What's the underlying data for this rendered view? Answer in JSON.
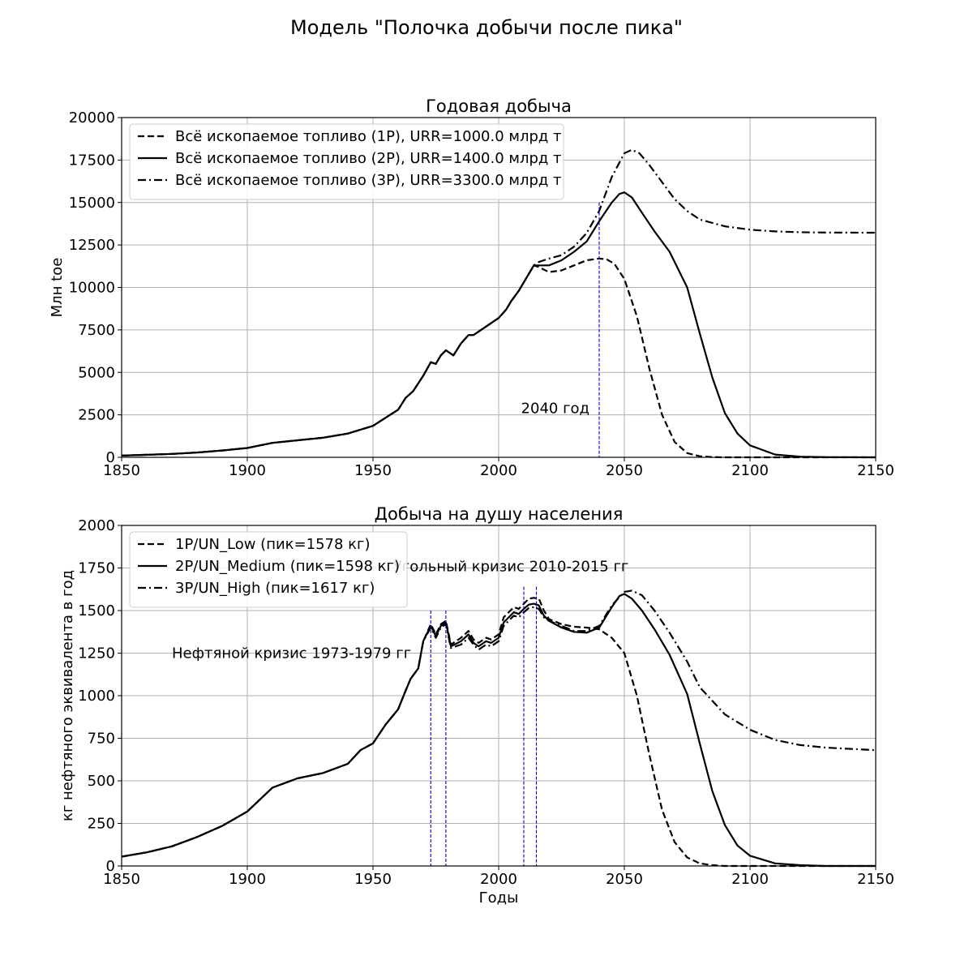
{
  "figure_title": "Модель \"Полочка добычи после пика\"",
  "colors": {
    "line": "#000000",
    "grid": "#b0b0b0",
    "marker": "#0000cc",
    "background": "#ffffff"
  },
  "chart_data": [
    {
      "type": "line",
      "title": "Годовая добыча",
      "xlabel": "",
      "ylabel": "Млн toe",
      "xlim": [
        1850,
        2150
      ],
      "ylim": [
        0,
        20000
      ],
      "xticks": [
        1850,
        1900,
        1950,
        2000,
        2050,
        2100,
        2150
      ],
      "yticks": [
        0,
        2500,
        5000,
        7500,
        10000,
        12500,
        15000,
        17500,
        20000
      ],
      "grid": true,
      "legend_position": "top-left",
      "series": [
        {
          "name": "Всё ископаемое топливо (1P), URR=1000.0 млрд т",
          "style": "dashed",
          "x": [
            1850,
            1860,
            1870,
            1880,
            1890,
            1900,
            1910,
            1920,
            1930,
            1940,
            1950,
            1960,
            1963,
            1966,
            1970,
            1973,
            1975,
            1977,
            1979,
            1982,
            1985,
            1988,
            1990,
            1993,
            1995,
            1998,
            2000,
            2003,
            2005,
            2008,
            2010,
            2012,
            2014,
            2016,
            2020,
            2025,
            2030,
            2035,
            2040,
            2043,
            2046,
            2050,
            2055,
            2060,
            2065,
            2070,
            2075,
            2080,
            2085,
            2090,
            2100,
            2110,
            2130,
            2150
          ],
          "y": [
            100,
            150,
            200,
            280,
            400,
            550,
            850,
            1000,
            1150,
            1400,
            1850,
            2800,
            3500,
            3900,
            4800,
            5600,
            5500,
            6000,
            6300,
            6000,
            6700,
            7200,
            7200,
            7500,
            7700,
            8000,
            8200,
            8700,
            9200,
            9800,
            10300,
            10800,
            11300,
            11200,
            10900,
            11000,
            11300,
            11600,
            11700,
            11650,
            11400,
            10500,
            8300,
            5200,
            2500,
            900,
            250,
            60,
            15,
            0,
            0,
            0,
            0,
            0
          ]
        },
        {
          "name": "Всё ископаемое топливо (2P), URR=1400.0 млрд т",
          "style": "solid",
          "x": [
            1850,
            1860,
            1870,
            1880,
            1890,
            1900,
            1910,
            1920,
            1930,
            1940,
            1950,
            1960,
            1963,
            1966,
            1970,
            1973,
            1975,
            1977,
            1979,
            1982,
            1985,
            1988,
            1990,
            1993,
            1995,
            1998,
            2000,
            2003,
            2005,
            2008,
            2010,
            2012,
            2014,
            2016,
            2020,
            2025,
            2030,
            2035,
            2040,
            2045,
            2048,
            2050,
            2053,
            2057,
            2062,
            2068,
            2075,
            2080,
            2085,
            2090,
            2095,
            2100,
            2110,
            2120,
            2130,
            2150
          ],
          "y": [
            100,
            150,
            200,
            280,
            400,
            550,
            850,
            1000,
            1150,
            1400,
            1850,
            2800,
            3500,
            3900,
            4800,
            5600,
            5500,
            6000,
            6300,
            6000,
            6700,
            7200,
            7200,
            7500,
            7700,
            8000,
            8200,
            8700,
            9200,
            9800,
            10300,
            10800,
            11300,
            11300,
            11300,
            11600,
            12100,
            12700,
            13900,
            15000,
            15500,
            15600,
            15300,
            14400,
            13300,
            12100,
            10000,
            7300,
            4700,
            2600,
            1400,
            700,
            160,
            40,
            10,
            0
          ]
        },
        {
          "name": "Всё ископаемое топливо (3P), URR=3300.0 млрд т",
          "style": "dashdot",
          "x": [
            1850,
            1860,
            1870,
            1880,
            1890,
            1900,
            1910,
            1920,
            1930,
            1940,
            1950,
            1960,
            1963,
            1966,
            1970,
            1973,
            1975,
            1977,
            1979,
            1982,
            1985,
            1988,
            1990,
            1993,
            1995,
            1998,
            2000,
            2003,
            2005,
            2008,
            2010,
            2012,
            2014,
            2016,
            2020,
            2025,
            2030,
            2035,
            2040,
            2045,
            2050,
            2053,
            2056,
            2060,
            2065,
            2070,
            2075,
            2080,
            2090,
            2100,
            2110,
            2120,
            2130,
            2150
          ],
          "y": [
            100,
            150,
            200,
            280,
            400,
            550,
            850,
            1000,
            1150,
            1400,
            1850,
            2800,
            3500,
            3900,
            4800,
            5600,
            5500,
            6000,
            6300,
            6000,
            6700,
            7200,
            7200,
            7500,
            7700,
            8000,
            8200,
            8700,
            9200,
            9800,
            10300,
            10800,
            11300,
            11500,
            11700,
            11900,
            12400,
            13200,
            14500,
            16500,
            17900,
            18100,
            17900,
            17200,
            16200,
            15200,
            14500,
            14000,
            13600,
            13400,
            13300,
            13250,
            13230,
            13220
          ]
        }
      ],
      "vlines": [
        {
          "x": 2040,
          "ymax": 15000,
          "label": "2040 год"
        }
      ]
    },
    {
      "type": "line",
      "title": "Добыча на душу населения",
      "xlabel": "Годы",
      "ylabel": "кг нефтяного эквивалента в год",
      "xlim": [
        1850,
        2150
      ],
      "ylim": [
        0,
        2000
      ],
      "xticks": [
        1850,
        1900,
        1950,
        2000,
        2050,
        2100,
        2150
      ],
      "yticks": [
        0,
        250,
        500,
        750,
        1000,
        1250,
        1500,
        1750,
        2000
      ],
      "grid": true,
      "legend_position": "top-left",
      "series": [
        {
          "name": "1P/UN_Low (пик=1578 кг)",
          "style": "dashed",
          "x": [
            1850,
            1860,
            1870,
            1880,
            1890,
            1900,
            1910,
            1920,
            1930,
            1940,
            1945,
            1950,
            1955,
            1960,
            1963,
            1965,
            1968,
            1970,
            1973,
            1975,
            1977,
            1979,
            1981,
            1983,
            1985,
            1988,
            1990,
            1992,
            1995,
            1997,
            2000,
            2002,
            2004,
            2006,
            2008,
            2010,
            2012,
            2014,
            2016,
            2018,
            2020,
            2025,
            2030,
            2035,
            2040,
            2045,
            2050,
            2055,
            2060,
            2065,
            2070,
            2075,
            2080,
            2085,
            2090,
            2100,
            2110,
            2130,
            2150
          ],
          "y": [
            55,
            80,
            115,
            170,
            235,
            320,
            460,
            515,
            545,
            600,
            680,
            720,
            830,
            920,
            1030,
            1100,
            1160,
            1320,
            1420,
            1360,
            1420,
            1440,
            1300,
            1320,
            1340,
            1380,
            1330,
            1310,
            1340,
            1330,
            1360,
            1460,
            1490,
            1520,
            1510,
            1540,
            1570,
            1575,
            1570,
            1500,
            1450,
            1420,
            1405,
            1400,
            1390,
            1340,
            1250,
            1000,
            650,
            330,
            140,
            50,
            15,
            5,
            0,
            0,
            0,
            0,
            0
          ]
        },
        {
          "name": "2P/UN_Medium (пик=1598 кг)",
          "style": "solid",
          "x": [
            1850,
            1860,
            1870,
            1880,
            1890,
            1900,
            1910,
            1920,
            1930,
            1940,
            1945,
            1950,
            1955,
            1960,
            1963,
            1965,
            1968,
            1970,
            1973,
            1975,
            1977,
            1979,
            1981,
            1983,
            1985,
            1988,
            1990,
            1992,
            1995,
            1997,
            2000,
            2002,
            2004,
            2006,
            2008,
            2010,
            2012,
            2014,
            2016,
            2018,
            2020,
            2025,
            2030,
            2035,
            2040,
            2045,
            2048,
            2050,
            2053,
            2057,
            2062,
            2068,
            2075,
            2080,
            2085,
            2090,
            2095,
            2100,
            2110,
            2120,
            2130,
            2150
          ],
          "y": [
            55,
            80,
            115,
            170,
            235,
            320,
            460,
            515,
            545,
            600,
            680,
            720,
            830,
            920,
            1030,
            1100,
            1160,
            1320,
            1410,
            1350,
            1410,
            1430,
            1290,
            1305,
            1320,
            1360,
            1310,
            1290,
            1320,
            1310,
            1340,
            1430,
            1460,
            1490,
            1480,
            1510,
            1535,
            1540,
            1530,
            1470,
            1440,
            1400,
            1375,
            1370,
            1400,
            1520,
            1585,
            1598,
            1570,
            1500,
            1390,
            1240,
            1010,
            720,
            440,
            240,
            120,
            60,
            15,
            5,
            0,
            0
          ]
        },
        {
          "name": "3P/UN_High (пик=1617 кг)",
          "style": "dashdot",
          "x": [
            1850,
            1860,
            1870,
            1880,
            1890,
            1900,
            1910,
            1920,
            1930,
            1940,
            1945,
            1950,
            1955,
            1960,
            1963,
            1965,
            1968,
            1970,
            1973,
            1975,
            1977,
            1979,
            1981,
            1983,
            1985,
            1988,
            1990,
            1992,
            1995,
            1997,
            2000,
            2002,
            2004,
            2006,
            2008,
            2010,
            2012,
            2014,
            2016,
            2018,
            2020,
            2025,
            2030,
            2035,
            2040,
            2045,
            2050,
            2053,
            2057,
            2062,
            2068,
            2075,
            2080,
            2090,
            2100,
            2110,
            2120,
            2130,
            2150
          ],
          "y": [
            55,
            80,
            115,
            170,
            235,
            320,
            460,
            515,
            545,
            600,
            680,
            720,
            830,
            920,
            1030,
            1100,
            1160,
            1320,
            1400,
            1340,
            1400,
            1420,
            1280,
            1290,
            1300,
            1340,
            1300,
            1270,
            1300,
            1290,
            1320,
            1410,
            1440,
            1470,
            1460,
            1490,
            1515,
            1520,
            1510,
            1460,
            1440,
            1410,
            1380,
            1380,
            1410,
            1530,
            1610,
            1617,
            1590,
            1500,
            1370,
            1200,
            1050,
            890,
            800,
            740,
            710,
            695,
            680
          ]
        }
      ],
      "vlines": [
        {
          "x": 1973,
          "ymax": 1500
        },
        {
          "x": 1979,
          "ymax": 1500
        },
        {
          "x": 2010,
          "ymax": 1640
        },
        {
          "x": 2015,
          "ymax": 1640
        }
      ],
      "annotations": [
        {
          "text": "Нефтяной кризис 1973-1979 гг",
          "x": 1870,
          "y": 1250
        },
        {
          "text": "Угольный кризис 2010-2015 гг",
          "x": 1958,
          "y": 1760
        }
      ]
    }
  ]
}
